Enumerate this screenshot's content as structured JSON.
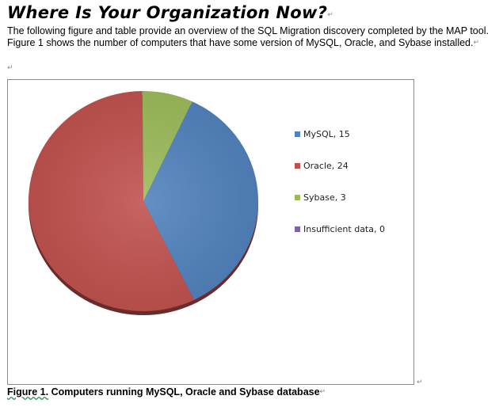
{
  "document": {
    "title": "Where Is Your Organization Now?",
    "paragraph": "The  following figure and table provide an overview of the SQL Migration discovery completed by the MAP tool. Figure 1 shows the number of computers that have  some version of MySQL, Oracle, and Sybase installed.",
    "para_mark": "↵",
    "caption_prefix": "Figure 1.",
    "caption_text": " Computers  running  MySQL, Oracle  and  Sybase database"
  },
  "chart_data": {
    "type": "pie",
    "categories": [
      "MySQL",
      "Oracle",
      "Sybase",
      "Insufficient data"
    ],
    "values": [
      15,
      24,
      3,
      0
    ],
    "legend_labels": [
      "MySQL, 15",
      "Oracle, 24",
      "Sybase, 3",
      "Insufficient data, 0"
    ],
    "colors": [
      "#4f81bd",
      "#c0504d",
      "#9bbb59",
      "#8064a2"
    ],
    "legend": "right"
  }
}
